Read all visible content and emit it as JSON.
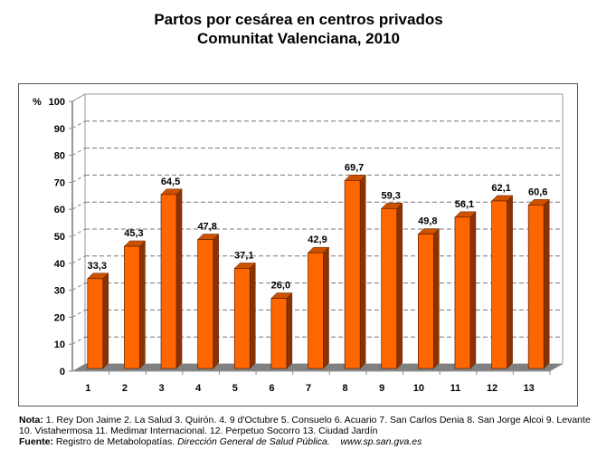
{
  "chart_data": {
    "type": "bar",
    "title": "Partos por cesárea en centros privados",
    "subtitle": "Comunitat Valenciana, 2010",
    "ylabel": "%",
    "ylim": [
      0,
      100
    ],
    "yticks": [
      0,
      10,
      20,
      30,
      40,
      50,
      60,
      70,
      80,
      90,
      100
    ],
    "grid": true,
    "categories": [
      "1",
      "2",
      "3",
      "4",
      "5",
      "6",
      "7",
      "8",
      "9",
      "10",
      "11",
      "12",
      "13"
    ],
    "values": [
      33.3,
      45.3,
      64.5,
      47.8,
      37.1,
      26.0,
      42.9,
      69.7,
      59.3,
      49.8,
      56.1,
      62.1,
      60.6
    ],
    "data_labels": [
      "33,3",
      "45,3",
      "64,5",
      "47,8",
      "37,1",
      "26,0",
      "42,9",
      "69,7",
      "59,3",
      "49,8",
      "56,1",
      "62,1",
      "60,6"
    ],
    "colors": {
      "bar_front": "#ff6600",
      "bar_side": "#8b3300",
      "bar_top": "#cc5200",
      "floor": "#808080"
    }
  },
  "notes": {
    "nota_label": "Nota:",
    "nota_line1": " 1. Rey Don Jaime  2. La Salud  3. Quirón. 4. 9 d'Octubre  5. Consuelo  6. Acuario  7. San Carlos Denia 8. San Jorge Alcoi   9. Levante",
    "nota_line2": "10. Vistahermosa 11. Medimar Internacional. 12. Perpetuo Socorro 13. Ciudad Jardín",
    "fuente_label": "Fuente:",
    "fuente_text": " Registro de Metabolopatías. ",
    "fuente_italic": "Dirección General de Salud Pública.",
    "fuente_url": "www.sp.san.gva.es"
  }
}
